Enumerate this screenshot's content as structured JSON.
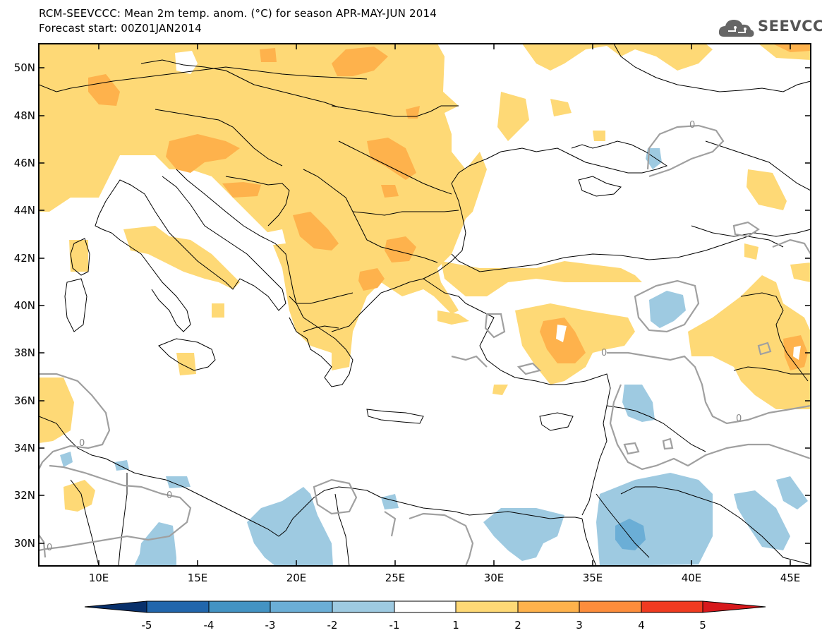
{
  "header": {
    "title_line1": "RCM-SEEVCCC: Mean 2m temp. anom. (°C) for season APR-MAY-JUN 2014",
    "title_line2": "Forecast start: 00Z01JAN2014"
  },
  "logo": {
    "text": "SEEVCCC",
    "icon": "cloud-icon"
  },
  "axes": {
    "x_ticks": [
      "10E",
      "15E",
      "20E",
      "25E",
      "30E",
      "35E",
      "40E",
      "45E"
    ],
    "y_ticks": [
      "50N",
      "48N",
      "46N",
      "44N",
      "42N",
      "40N",
      "38N",
      "36N",
      "34N",
      "32N",
      "30N"
    ]
  },
  "contour_labels": [
    "0",
    "0",
    "0",
    "0",
    "0",
    "0"
  ],
  "colorbar": {
    "labels": [
      "-5",
      "-4",
      "-3",
      "-2",
      "-1",
      "1",
      "2",
      "3",
      "4",
      "5"
    ],
    "colors": [
      "#08306b",
      "#2166ac",
      "#4393c3",
      "#6baed6",
      "#9ecae1",
      "#ffffff",
      "#fed976",
      "#feb24c",
      "#fd8d3c",
      "#f03b20",
      "#d7191c"
    ]
  },
  "chart_data": {
    "type": "heatmap",
    "title": "RCM-SEEVCCC: Mean 2m temp. anom. (°C) for season APR-MAY-JUN 2014",
    "subtitle": "Forecast start: 00Z01JAN2014",
    "lon_range": [
      7,
      46
    ],
    "lat_range": [
      29,
      51
    ],
    "levels": [
      -5,
      -4,
      -3,
      -2,
      -1,
      1,
      2,
      3,
      4,
      5
    ],
    "colors": {
      "warm1": "#fed976",
      "warm2": "#feb24c",
      "cool1": "#9ecae1",
      "cool2": "#6baed6",
      "contour": "#a0a0a0"
    }
  }
}
